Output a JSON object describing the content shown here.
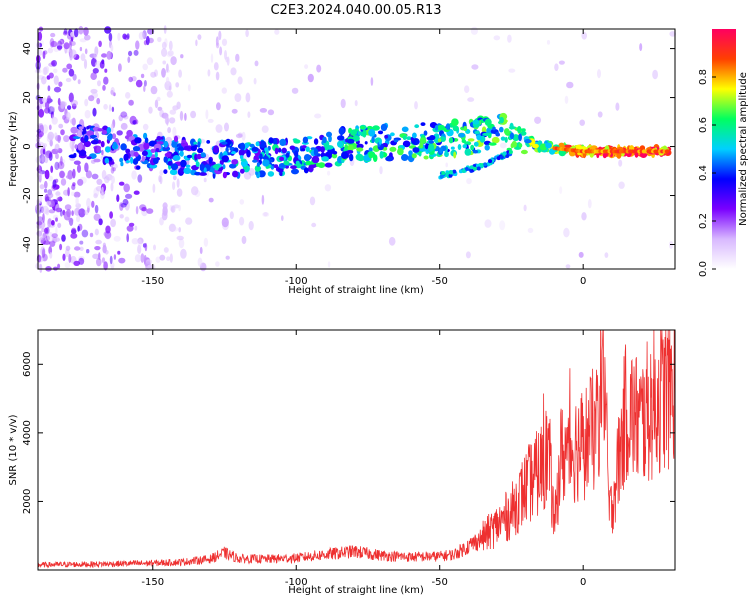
{
  "chart_data": [
    {
      "type": "heatmap",
      "title": "C2E3.2024.040.00.05.R13",
      "xlabel": "Height of straight line (km)",
      "ylabel": "Frequency (Hz)",
      "xlim": [
        -190,
        32
      ],
      "ylim": [
        -50,
        48
      ],
      "xticks": [
        -150,
        -100,
        -50,
        0
      ],
      "yticks": [
        -40,
        -20,
        0,
        20,
        40
      ],
      "colorbar": {
        "label": "Normalized spectral amplitude",
        "range": [
          0,
          1
        ],
        "ticks": [
          "0.0",
          "0.2",
          "0.4",
          "0.6",
          "0.8"
        ],
        "colors": [
          "#ffffff",
          "#d8b8ff",
          "#7a00ff",
          "#0000ff",
          "#00d0ff",
          "#00ff60",
          "#ffff00",
          "#ff4000",
          "#ff0060"
        ]
      },
      "signal_track": [
        {
          "x": -175,
          "freq": 2,
          "amp": 0.3
        },
        {
          "x": -150,
          "freq": -3,
          "amp": 0.35
        },
        {
          "x": -125,
          "freq": -5,
          "amp": 0.4
        },
        {
          "x": -100,
          "freq": -4,
          "amp": 0.45
        },
        {
          "x": -80,
          "freq": 1,
          "amp": 0.5
        },
        {
          "x": -60,
          "freq": 2,
          "amp": 0.5
        },
        {
          "x": -40,
          "freq": 4,
          "amp": 0.55
        },
        {
          "x": -25,
          "freq": 6,
          "amp": 0.55
        },
        {
          "x": -15,
          "freq": 0,
          "amp": 0.6
        },
        {
          "x": 0,
          "freq": -2,
          "amp": 0.85
        },
        {
          "x": 15,
          "freq": -2,
          "amp": 0.9
        },
        {
          "x": 30,
          "freq": -2,
          "amp": 0.85
        }
      ],
      "secondary_track": [
        {
          "x": -50,
          "freq": -12,
          "amp": 0.4
        },
        {
          "x": -35,
          "freq": -8,
          "amp": 0.45
        },
        {
          "x": -25,
          "freq": -2,
          "amp": 0.5
        }
      ]
    },
    {
      "type": "line",
      "xlabel": "Height of straight line (km)",
      "ylabel": "SNR (10 * v/v)",
      "xlim": [
        -190,
        32
      ],
      "ylim": [
        0,
        7000
      ],
      "xticks": [
        -150,
        -100,
        -50,
        0
      ],
      "yticks": [
        2000,
        4000,
        6000
      ],
      "color": "#ee3030",
      "series": [
        {
          "x": [
            -190,
            -170,
            -150,
            -140,
            -130,
            -125,
            -120,
            -110,
            -100,
            -90,
            -80,
            -70,
            -60,
            -50,
            -45,
            -40,
            -35,
            -30,
            -25,
            -20,
            -15,
            -12,
            -10,
            -8,
            -5,
            0,
            5,
            7,
            9,
            10,
            12,
            15,
            20,
            25,
            30,
            32
          ],
          "y": [
            150,
            170,
            200,
            230,
            320,
            500,
            330,
            320,
            350,
            450,
            540,
            420,
            380,
            400,
            450,
            700,
            950,
            1300,
            1700,
            2400,
            2900,
            3500,
            1200,
            3300,
            3500,
            3700,
            4200,
            6800,
            1700,
            1850,
            3000,
            4700,
            4300,
            4900,
            5300,
            5500
          ]
        }
      ]
    }
  ]
}
